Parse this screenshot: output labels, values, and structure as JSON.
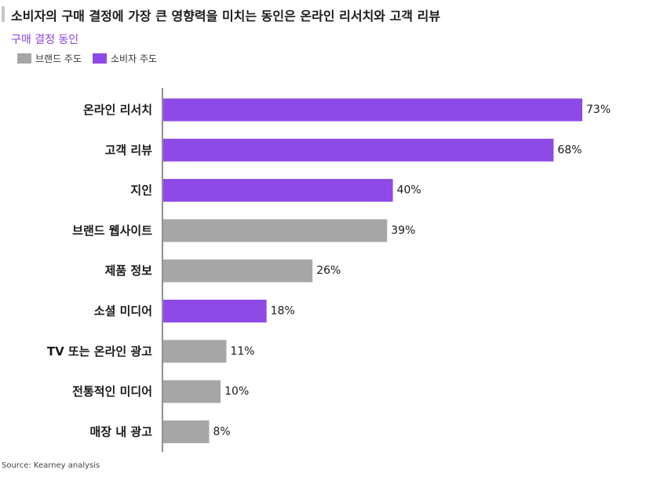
{
  "title": "소비자의 구매 결정에 가장 큰 영향력을 미치는 동인은 온라인 리서치와 고객 리뷰",
  "subtitle": "구매 결정 동인",
  "source": "Source: Kearney analysis",
  "colors": {
    "brand": "#a6a6a6",
    "consumer": "#8e4ae6",
    "subtitle": "#8b3fe0"
  },
  "legend": [
    {
      "label": "브랜드 주도",
      "key": "brand"
    },
    {
      "label": "소비자 주도",
      "key": "consumer"
    }
  ],
  "chart_data": {
    "type": "bar",
    "orientation": "horizontal",
    "categories": [
      "온라인 리서치",
      "고객 리뷰",
      "지인",
      "브랜드 웹사이트",
      "제품 정보",
      "소셜 미디어",
      "TV 또는 온라인 광고",
      "전통적인 미디어",
      "매장 내 광고"
    ],
    "values": [
      73,
      68,
      40,
      39,
      26,
      18,
      11,
      10,
      8
    ],
    "value_labels": [
      "73%",
      "68%",
      "40%",
      "39%",
      "26%",
      "18%",
      "11%",
      "10%",
      "8%"
    ],
    "groups": [
      "consumer",
      "consumer",
      "consumer",
      "brand",
      "brand",
      "consumer",
      "brand",
      "brand",
      "brand"
    ],
    "unit": "%",
    "xlim": [
      0,
      73
    ],
    "grid": false,
    "legend_position": "top-left"
  }
}
